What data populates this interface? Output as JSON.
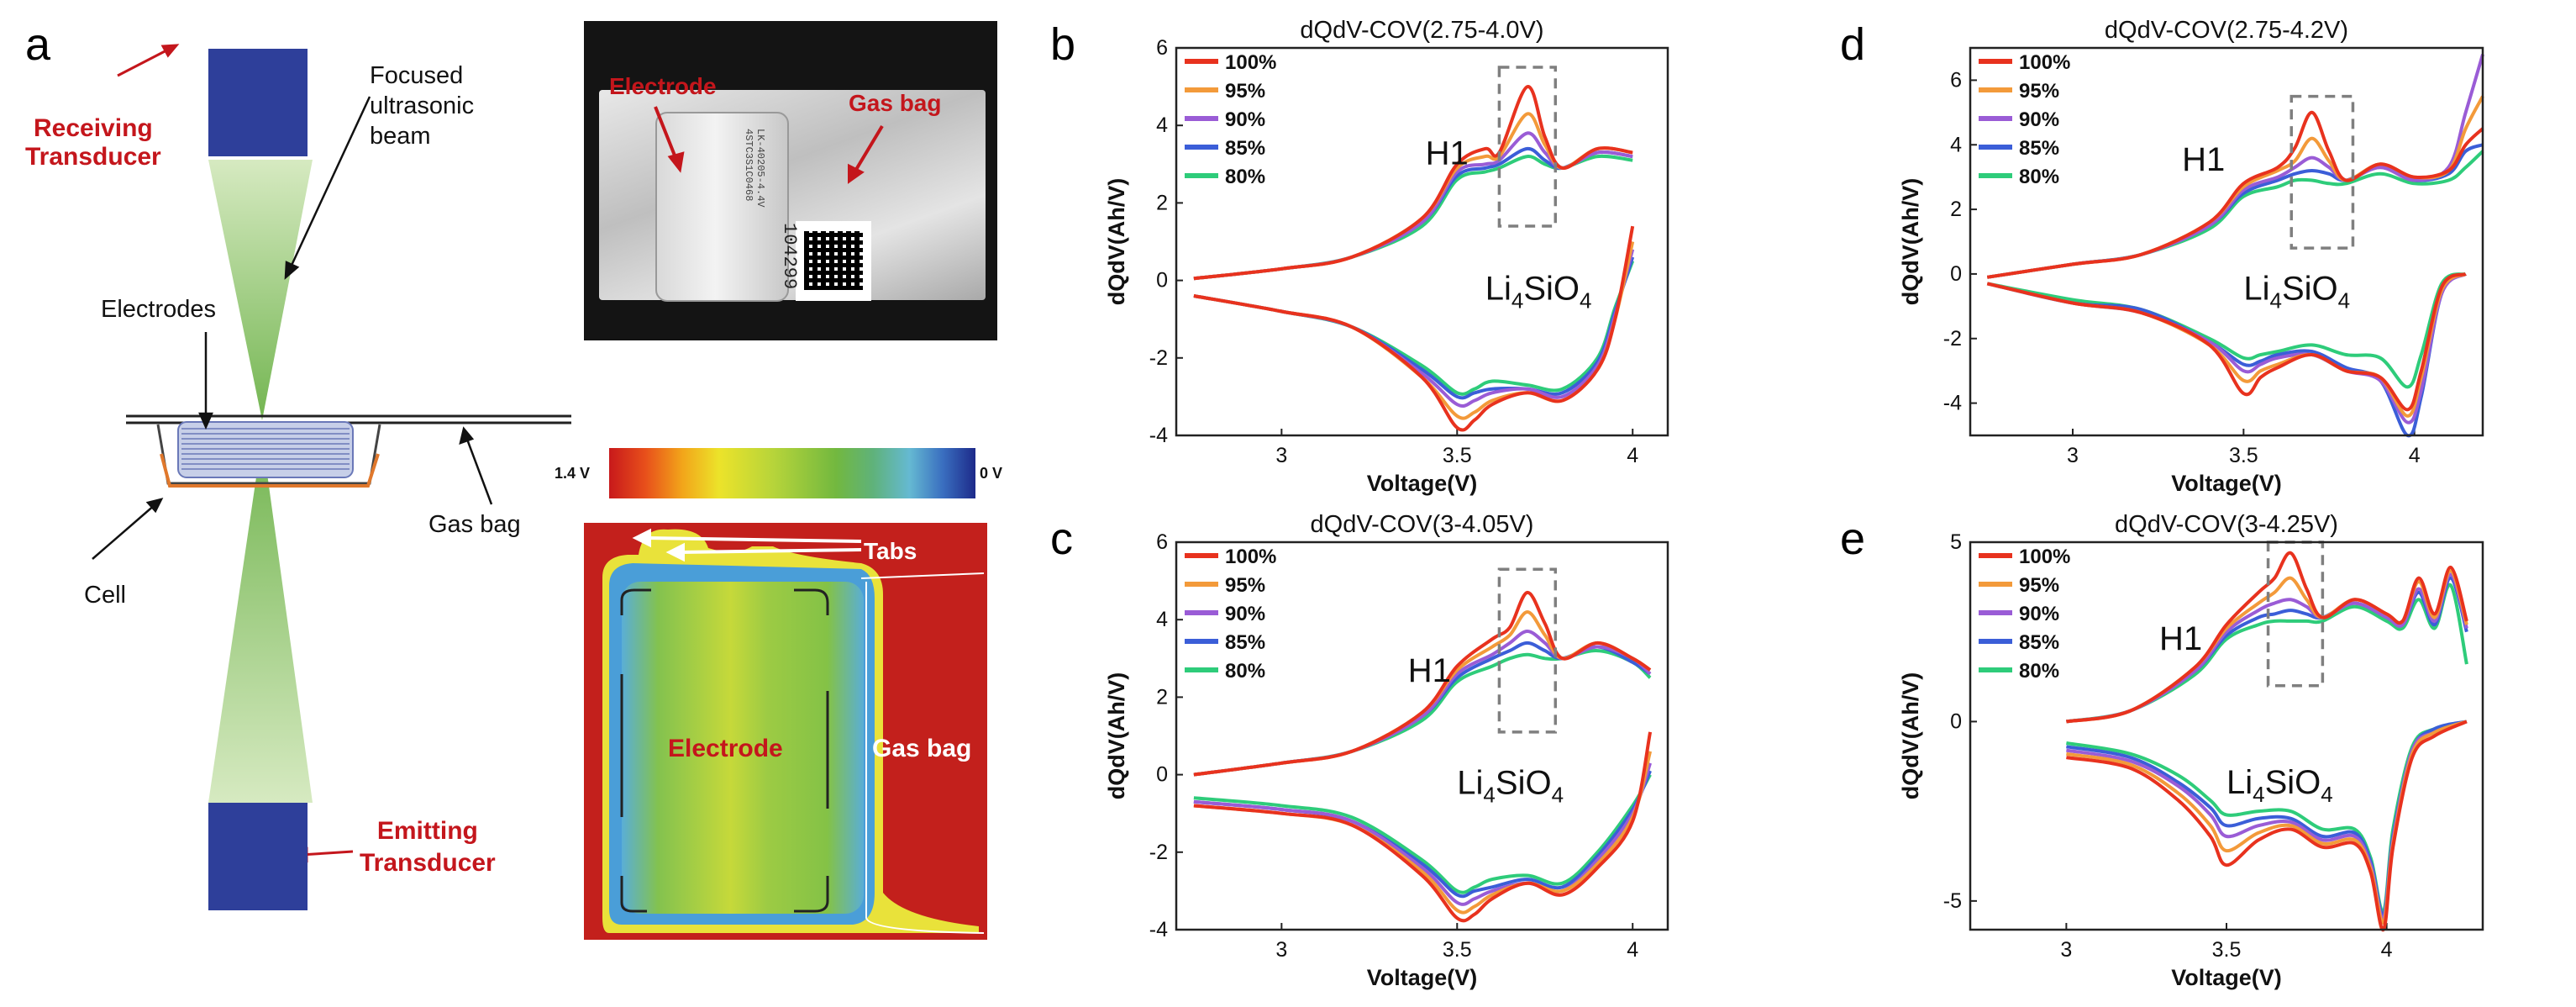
{
  "colors": {
    "series": [
      "#e8321e",
      "#f39a3a",
      "#9a5cd6",
      "#3b5ed8",
      "#2ecc7a"
    ],
    "transducer": "#2e3f9a",
    "beam": "#6fbf3a",
    "annot_red": "#c4161c",
    "box": "#7f7f7f"
  },
  "panel_a": {
    "label": "a",
    "receiving": "Receiving\nTransducer",
    "beam_label": "Focused\nultrasonic\nbeam",
    "electrodes": "Electrodes",
    "gas_bag": "Gas bag",
    "cell": "Cell",
    "emitting": "Emitting\nTransducer",
    "photo": {
      "electrode": "Electrode",
      "gas_bag": "Gas bag",
      "cell_print": "LK-40205-4.4V\n4STC3S1C0468",
      "serial": "104299"
    },
    "colorbar": {
      "max_label": "1.4 V",
      "min_label": "0 V",
      "max_value": 1.4,
      "min_value": 0
    },
    "map": {
      "tabs": "Tabs",
      "electrode": "Electrode",
      "gas_bag": "Gas bag"
    }
  },
  "chart_data": [
    {
      "panel": "b",
      "type": "line",
      "title": "dQdV-COV(2.75-4.0V)",
      "xlabel": "Voltage(V)",
      "ylabel": "dQdV(Ah/V)",
      "xlim": [
        2.7,
        4.1
      ],
      "ylim": [
        -4,
        6
      ],
      "xticks": [
        3,
        3.5,
        4
      ],
      "yticks": [
        -4,
        -2,
        0,
        2,
        4,
        6
      ],
      "legend": [
        "100%",
        "95%",
        "90%",
        "85%",
        "80%"
      ],
      "annotations": {
        "peak": "H1",
        "compound": "Li",
        "sub1": "4",
        "mid": "SiO",
        "sub2": "4"
      },
      "box": [
        3.62,
        3.78,
        1.4,
        5.5
      ],
      "annot_pos": {
        "h1": [
          3.41,
          3.0
        ],
        "li": [
          3.58,
          -0.5
        ]
      },
      "charge_x": [
        2.75,
        3.0,
        3.2,
        3.4,
        3.5,
        3.58,
        3.62,
        3.7,
        3.75,
        3.8,
        3.9,
        4.0
      ],
      "charge": [
        [
          0.05,
          0.3,
          0.6,
          1.6,
          3.0,
          3.4,
          3.3,
          5.0,
          3.7,
          2.9,
          3.4,
          3.3
        ],
        [
          0.05,
          0.3,
          0.6,
          1.6,
          2.9,
          3.2,
          3.2,
          4.3,
          3.5,
          2.9,
          3.4,
          3.3
        ],
        [
          0.05,
          0.3,
          0.6,
          1.5,
          2.8,
          3.0,
          3.1,
          3.8,
          3.3,
          2.9,
          3.3,
          3.2
        ],
        [
          0.05,
          0.3,
          0.6,
          1.5,
          2.7,
          2.9,
          3.0,
          3.4,
          3.1,
          2.9,
          3.3,
          3.2
        ],
        [
          0.05,
          0.3,
          0.6,
          1.4,
          2.6,
          2.8,
          2.9,
          3.2,
          3.0,
          2.9,
          3.2,
          3.1
        ]
      ],
      "discharge_x": [
        2.75,
        3.0,
        3.2,
        3.4,
        3.5,
        3.55,
        3.6,
        3.7,
        3.8,
        3.9,
        3.95,
        4.0
      ],
      "discharge": [
        [
          -0.4,
          -0.8,
          -1.2,
          -2.5,
          -3.8,
          -3.6,
          -3.2,
          -2.9,
          -3.1,
          -2.3,
          -1.0,
          1.4
        ],
        [
          -0.4,
          -0.8,
          -1.2,
          -2.5,
          -3.5,
          -3.4,
          -3.1,
          -2.9,
          -3.1,
          -2.3,
          -1.0,
          1.0
        ],
        [
          -0.4,
          -0.8,
          -1.2,
          -2.4,
          -3.2,
          -3.1,
          -2.9,
          -2.8,
          -3.0,
          -2.2,
          -0.9,
          0.8
        ],
        [
          -0.4,
          -0.8,
          -1.2,
          -2.3,
          -3.0,
          -2.9,
          -2.8,
          -2.8,
          -2.9,
          -2.1,
          -0.8,
          0.6
        ],
        [
          -0.4,
          -0.8,
          -1.2,
          -2.2,
          -2.9,
          -2.8,
          -2.6,
          -2.7,
          -2.8,
          -2.0,
          -0.7,
          0.5
        ]
      ]
    },
    {
      "panel": "c",
      "type": "line",
      "title": "dQdV-COV(3-4.05V)",
      "xlabel": "Voltage(V)",
      "ylabel": "dQdV(Ah/V)",
      "xlim": [
        2.7,
        4.1
      ],
      "ylim": [
        -4,
        6
      ],
      "xticks": [
        3,
        3.5,
        4
      ],
      "yticks": [
        -4,
        -2,
        0,
        2,
        4,
        6
      ],
      "legend": [
        "100%",
        "95%",
        "90%",
        "85%",
        "80%"
      ],
      "annotations": {
        "peak": "H1",
        "compound": "Li",
        "sub1": "4",
        "mid": "SiO",
        "sub2": "4"
      },
      "box": [
        3.62,
        3.78,
        1.1,
        5.3
      ],
      "annot_pos": {
        "h1": [
          3.36,
          2.4
        ],
        "li": [
          3.5,
          -0.5
        ]
      },
      "charge_x": [
        2.75,
        3.0,
        3.2,
        3.4,
        3.5,
        3.6,
        3.65,
        3.7,
        3.75,
        3.8,
        3.9,
        4.0,
        4.05
      ],
      "charge": [
        [
          0.0,
          0.3,
          0.6,
          1.6,
          2.8,
          3.5,
          3.8,
          4.7,
          3.9,
          3.0,
          3.4,
          3.0,
          2.7
        ],
        [
          0.0,
          0.3,
          0.6,
          1.6,
          2.7,
          3.3,
          3.6,
          4.2,
          3.6,
          3.0,
          3.4,
          3.0,
          2.7
        ],
        [
          0.0,
          0.3,
          0.6,
          1.5,
          2.6,
          3.1,
          3.4,
          3.7,
          3.4,
          3.0,
          3.3,
          3.0,
          2.6
        ],
        [
          0.0,
          0.3,
          0.6,
          1.5,
          2.5,
          3.0,
          3.2,
          3.4,
          3.2,
          3.0,
          3.3,
          2.9,
          2.6
        ],
        [
          0.0,
          0.3,
          0.6,
          1.4,
          2.4,
          2.8,
          3.0,
          3.1,
          3.0,
          3.0,
          3.2,
          2.9,
          2.5
        ]
      ],
      "discharge_x": [
        2.75,
        3.0,
        3.2,
        3.4,
        3.5,
        3.55,
        3.6,
        3.7,
        3.8,
        3.9,
        4.0,
        4.05
      ],
      "discharge": [
        [
          -0.8,
          -1.0,
          -1.3,
          -2.6,
          -3.7,
          -3.6,
          -3.2,
          -2.8,
          -3.1,
          -2.4,
          -1.2,
          1.1
        ],
        [
          -0.8,
          -1.0,
          -1.3,
          -2.5,
          -3.5,
          -3.4,
          -3.1,
          -2.8,
          -3.0,
          -2.3,
          -1.1,
          0.6
        ],
        [
          -0.7,
          -0.9,
          -1.2,
          -2.4,
          -3.3,
          -3.2,
          -3.0,
          -2.8,
          -3.0,
          -2.2,
          -1.0,
          0.3
        ],
        [
          -0.7,
          -0.9,
          -1.2,
          -2.3,
          -3.1,
          -3.0,
          -2.9,
          -2.7,
          -2.9,
          -2.1,
          -0.9,
          0.1
        ],
        [
          -0.6,
          -0.8,
          -1.1,
          -2.2,
          -3.0,
          -2.9,
          -2.7,
          -2.6,
          -2.8,
          -2.0,
          -0.8,
          0.0
        ]
      ]
    },
    {
      "panel": "d",
      "type": "line",
      "title": "dQdV-COV(2.75-4.2V)",
      "xlabel": "Voltage(V)",
      "ylabel": "dQdV(Ah/V)",
      "xlim": [
        2.7,
        4.2
      ],
      "ylim": [
        -5,
        7
      ],
      "xticks": [
        3,
        3.5,
        4
      ],
      "yticks": [
        -4,
        -2,
        0,
        2,
        4,
        6
      ],
      "legend": [
        "100%",
        "95%",
        "90%",
        "85%",
        "80%"
      ],
      "annotations": {
        "peak": "H1",
        "compound": "Li",
        "sub1": "4",
        "mid": "SiO",
        "sub2": "4"
      },
      "box": [
        3.64,
        3.82,
        0.8,
        5.5
      ],
      "annot_pos": {
        "h1": [
          3.32,
          3.2
        ],
        "li": [
          3.5,
          -0.8
        ]
      },
      "charge_x": [
        2.75,
        3.0,
        3.2,
        3.4,
        3.5,
        3.6,
        3.65,
        3.7,
        3.75,
        3.8,
        3.9,
        4.0,
        4.1,
        4.15,
        4.2
      ],
      "charge": [
        [
          -0.1,
          0.3,
          0.6,
          1.6,
          2.8,
          3.3,
          3.9,
          5.0,
          3.8,
          2.9,
          3.4,
          3.0,
          3.2,
          4.0,
          4.5
        ],
        [
          -0.1,
          0.3,
          0.6,
          1.6,
          2.7,
          3.2,
          3.5,
          4.2,
          3.5,
          2.9,
          3.4,
          3.0,
          3.2,
          4.5,
          5.5
        ],
        [
          -0.1,
          0.3,
          0.6,
          1.5,
          2.6,
          3.0,
          3.3,
          3.6,
          3.3,
          2.9,
          3.3,
          2.9,
          3.3,
          5.0,
          6.8
        ],
        [
          -0.1,
          0.3,
          0.6,
          1.5,
          2.5,
          2.9,
          3.1,
          3.2,
          3.1,
          2.9,
          3.3,
          2.9,
          3.1,
          3.8,
          4.0
        ],
        [
          -0.1,
          0.3,
          0.6,
          1.4,
          2.4,
          2.7,
          2.9,
          2.9,
          2.8,
          2.8,
          3.1,
          2.8,
          2.9,
          3.3,
          3.8
        ]
      ],
      "discharge_x": [
        2.75,
        3.0,
        3.2,
        3.4,
        3.5,
        3.55,
        3.6,
        3.7,
        3.8,
        3.9,
        3.98,
        4.02,
        4.08,
        4.15
      ],
      "discharge": [
        [
          -0.3,
          -0.9,
          -1.2,
          -2.2,
          -3.7,
          -3.2,
          -2.9,
          -2.5,
          -3.0,
          -3.2,
          -4.2,
          -3.0,
          -0.4,
          0.0
        ],
        [
          -0.3,
          -0.9,
          -1.2,
          -2.2,
          -3.3,
          -3.0,
          -2.8,
          -2.5,
          -3.0,
          -3.2,
          -4.4,
          -3.2,
          -0.5,
          0.0
        ],
        [
          -0.3,
          -0.9,
          -1.2,
          -2.1,
          -3.0,
          -2.8,
          -2.6,
          -2.5,
          -3.0,
          -3.3,
          -4.6,
          -3.6,
          -0.6,
          0.0
        ],
        [
          -0.3,
          -0.9,
          -1.1,
          -2.1,
          -2.8,
          -2.7,
          -2.5,
          -2.4,
          -2.9,
          -3.3,
          -5.0,
          -3.8,
          -0.6,
          0.0
        ],
        [
          -0.3,
          -0.8,
          -1.1,
          -2.0,
          -2.6,
          -2.5,
          -2.4,
          -2.2,
          -2.5,
          -2.6,
          -3.5,
          -2.5,
          -0.3,
          0.0
        ]
      ]
    },
    {
      "panel": "e",
      "type": "line",
      "title": "dQdV-COV(3-4.25V)",
      "xlabel": "Voltage(V)",
      "ylabel": "dQdV(Ah/V)",
      "xlim": [
        2.7,
        4.3
      ],
      "ylim": [
        -5.8,
        5
      ],
      "xticks": [
        3,
        3.5,
        4
      ],
      "yticks": [
        -5,
        0,
        5
      ],
      "legend": [
        "100%",
        "95%",
        "90%",
        "85%",
        "80%"
      ],
      "annotations": {
        "peak": "H1",
        "compound": "Li",
        "sub1": "4",
        "mid": "SiO",
        "sub2": "4"
      },
      "box": [
        3.63,
        3.8,
        1.0,
        5.0
      ],
      "annot_pos": {
        "h1": [
          3.29,
          2.0
        ],
        "li": [
          3.5,
          -2.0
        ]
      },
      "charge_x": [
        3.0,
        3.2,
        3.4,
        3.5,
        3.6,
        3.65,
        3.7,
        3.75,
        3.8,
        3.9,
        4.0,
        4.05,
        4.1,
        4.15,
        4.2,
        4.25
      ],
      "charge": [
        [
          0.0,
          0.3,
          1.5,
          2.7,
          3.6,
          4.0,
          4.7,
          3.7,
          2.9,
          3.4,
          3.0,
          2.8,
          4.0,
          3.0,
          4.3,
          2.8
        ],
        [
          0.0,
          0.3,
          1.5,
          2.6,
          3.3,
          3.6,
          4.0,
          3.4,
          2.9,
          3.4,
          3.0,
          2.8,
          3.9,
          2.9,
          4.2,
          2.7
        ],
        [
          0.0,
          0.3,
          1.4,
          2.5,
          3.1,
          3.3,
          3.4,
          3.2,
          2.9,
          3.3,
          2.9,
          2.7,
          3.7,
          2.8,
          4.1,
          2.6
        ],
        [
          0.0,
          0.3,
          1.4,
          2.4,
          2.9,
          3.0,
          3.1,
          3.0,
          2.9,
          3.3,
          2.9,
          2.7,
          3.6,
          2.7,
          4.0,
          2.5
        ],
        [
          0.0,
          0.3,
          1.3,
          2.3,
          2.7,
          2.8,
          2.8,
          2.8,
          2.8,
          3.2,
          2.8,
          2.6,
          3.4,
          2.6,
          3.8,
          1.6
        ]
      ],
      "discharge_x": [
        3.0,
        3.2,
        3.35,
        3.45,
        3.5,
        3.6,
        3.7,
        3.8,
        3.9,
        3.95,
        3.99,
        4.02,
        4.08,
        4.15,
        4.25
      ],
      "discharge": [
        [
          -1.0,
          -1.3,
          -2.2,
          -3.2,
          -4.0,
          -3.3,
          -3.0,
          -3.5,
          -3.4,
          -4.2,
          -5.8,
          -3.5,
          -1.0,
          -0.4,
          0.0
        ],
        [
          -0.9,
          -1.2,
          -2.0,
          -2.9,
          -3.6,
          -3.1,
          -2.9,
          -3.4,
          -3.3,
          -4.1,
          -5.6,
          -3.4,
          -0.9,
          -0.3,
          0.0
        ],
        [
          -0.8,
          -1.1,
          -1.8,
          -2.6,
          -3.2,
          -2.9,
          -2.8,
          -3.3,
          -3.2,
          -4.0,
          -5.5,
          -3.3,
          -0.8,
          -0.3,
          0.0
        ],
        [
          -0.7,
          -1.0,
          -1.7,
          -2.4,
          -2.9,
          -2.7,
          -2.7,
          -3.2,
          -3.1,
          -3.9,
          -5.4,
          -3.2,
          -0.8,
          -0.2,
          0.0
        ],
        [
          -0.6,
          -0.9,
          -1.5,
          -2.2,
          -2.6,
          -2.5,
          -2.5,
          -3.0,
          -3.0,
          -3.8,
          -5.3,
          -3.0,
          -0.7,
          -0.2,
          0.0
        ]
      ]
    }
  ]
}
